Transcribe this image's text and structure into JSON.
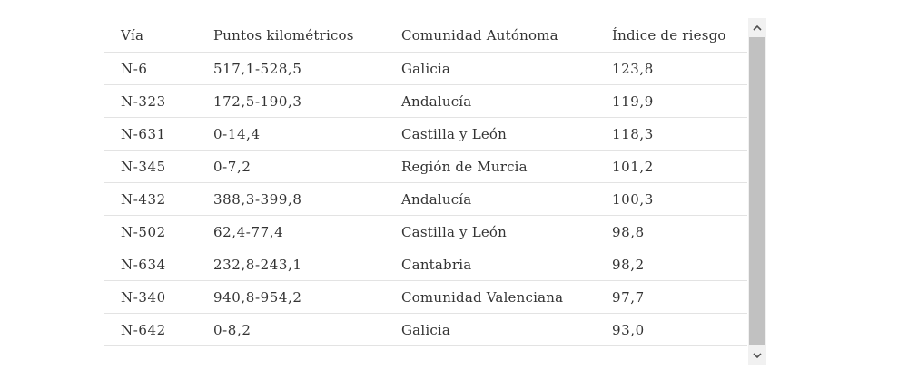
{
  "table": {
    "headers": [
      "Vía",
      "Puntos kilométricos",
      "Comunidad Autónoma",
      "Índice de riesgo"
    ],
    "rows": [
      [
        "N-6",
        "517,1-528,5",
        "Galicia",
        "123,8"
      ],
      [
        "N-323",
        "172,5-190,3",
        "Andalucía",
        "119,9"
      ],
      [
        "N-631",
        "0-14,4",
        "Castilla y León",
        "118,3"
      ],
      [
        "N-345",
        "0-7,2",
        "Región de Murcia",
        "101,2"
      ],
      [
        "N-432",
        "388,3-399,8",
        "Andalucía",
        "100,3"
      ],
      [
        "N-502",
        "62,4-77,4",
        "Castilla y León",
        "98,8"
      ],
      [
        "N-634",
        "232,8-243,1",
        "Cantabria",
        "98,2"
      ],
      [
        "N-340",
        "940,8-954,2",
        "Comunidad Valenciana",
        "97,7"
      ],
      [
        "N-642",
        "0-8,2",
        "Galicia",
        "93,0"
      ]
    ]
  },
  "scrollbar": {
    "up_icon": "chevron-up-icon",
    "down_icon": "chevron-down-icon"
  }
}
